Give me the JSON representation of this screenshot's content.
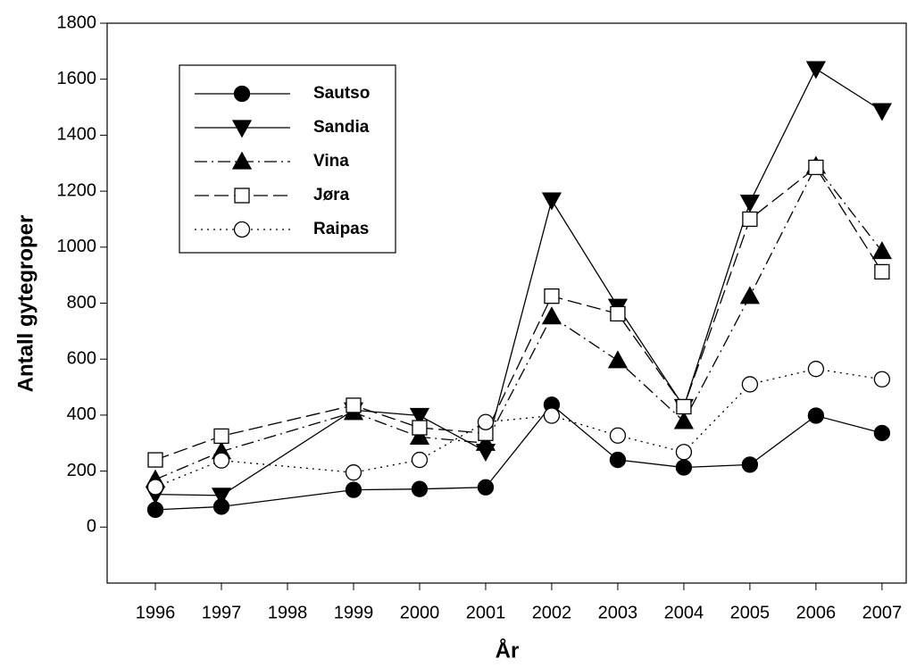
{
  "chart_data": {
    "type": "line",
    "x_label": "År",
    "y_label": "Antall gytegroper",
    "x": [
      1996,
      1997,
      1999,
      2000,
      2001,
      2002,
      2003,
      2004,
      2005,
      2006,
      2007
    ],
    "series": [
      {
        "name": "Sautso",
        "color": "#000000",
        "marker": "circle",
        "marker_filled": true,
        "line_style": "solid",
        "values": [
          62,
          73,
          133,
          136,
          142,
          437,
          240,
          213,
          223,
          398,
          336
        ]
      },
      {
        "name": "Sandia",
        "color": "#000000",
        "marker": "triangle-down",
        "marker_filled": true,
        "line_style": "solid",
        "values": [
          117,
          113,
          418,
          398,
          270,
          1168,
          788,
          430,
          1160,
          1637,
          1487
        ]
      },
      {
        "name": "Vina",
        "color": "#000000",
        "marker": "triangle-up",
        "marker_filled": true,
        "line_style": "dash-dot",
        "values": [
          170,
          270,
          410,
          322,
          300,
          752,
          595,
          378,
          825,
          1290,
          985
        ]
      },
      {
        "name": "Jøra",
        "color": "#000000",
        "marker": "square",
        "marker_filled": false,
        "line_style": "dash",
        "values": [
          240,
          325,
          435,
          355,
          335,
          825,
          762,
          430,
          1100,
          1285,
          912
        ]
      },
      {
        "name": "Raipas",
        "color": "#000000",
        "marker": "circle",
        "marker_filled": false,
        "line_style": "dot",
        "values": [
          143,
          238,
          195,
          240,
          375,
          398,
          327,
          268,
          510,
          565,
          528
        ]
      }
    ],
    "xlim": [
      1995.27,
      2007.38
    ],
    "xticks": [
      1996,
      1997,
      1998,
      1999,
      2000,
      2001,
      2002,
      2003,
      2004,
      2005,
      2006,
      2007
    ],
    "ylim": [
      -200,
      1800
    ],
    "yticks": [
      0,
      200,
      400,
      600,
      800,
      1000,
      1200,
      1400,
      1600,
      1800
    ],
    "grid": false,
    "legend": "upper left"
  }
}
